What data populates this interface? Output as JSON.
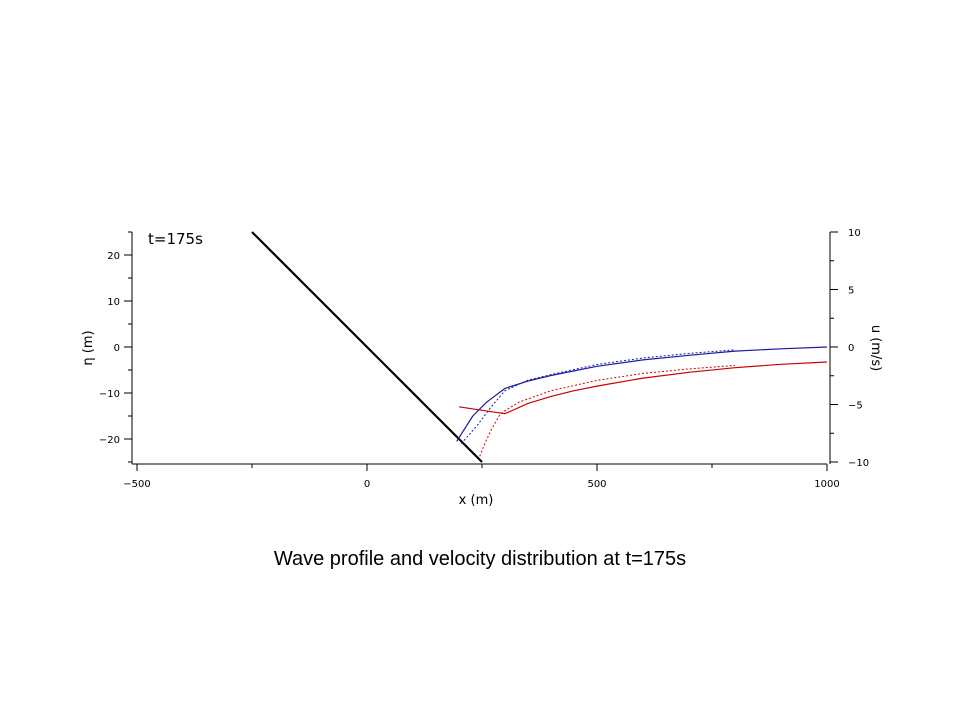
{
  "caption": "Wave profile and velocity distribution at t=175s",
  "chart_data": {
    "type": "line",
    "annotation": "t=175s",
    "xlabel": "x (m)",
    "ylabel_left": "η (m)",
    "ylabel_right": "u (m/s)",
    "xlim": [
      -500,
      1000
    ],
    "ylim_left": [
      -25,
      25
    ],
    "ylim_right": [
      -10,
      10
    ],
    "x_ticks": [
      -500,
      0,
      500,
      1000
    ],
    "y_left_ticks": [
      20,
      10,
      0,
      -10,
      -20
    ],
    "y_right_ticks": [
      10,
      5,
      0,
      -5,
      -10
    ],
    "grid": false,
    "legend": "none",
    "series": [
      {
        "axis": "left",
        "color": "#000000",
        "dash": "solid",
        "width": 2.2,
        "x": [
          -250,
          0,
          250
        ],
        "y": [
          25,
          0,
          -25
        ]
      },
      {
        "axis": "left",
        "color": "#1a1aa6",
        "dash": "solid",
        "width": 1.2,
        "x": [
          195,
          230,
          260,
          300,
          350,
          400,
          450,
          500,
          600,
          700,
          800,
          900,
          1000
        ],
        "y": [
          -20.5,
          -15,
          -12,
          -9,
          -7.4,
          -6.2,
          -5.2,
          -4.2,
          -2.8,
          -1.8,
          -0.9,
          -0.4,
          0
        ]
      },
      {
        "axis": "left",
        "color": "#1a1aa6",
        "dash": "dotted",
        "width": 1.0,
        "x": [
          205,
          240,
          270,
          300,
          350,
          400,
          450,
          500,
          600,
          700,
          800
        ],
        "y": [
          -21,
          -17,
          -13,
          -9.5,
          -7.2,
          -6,
          -4.9,
          -3.8,
          -2.4,
          -1.4,
          -0.6
        ]
      },
      {
        "axis": "right",
        "color": "#cc0000",
        "dash": "solid",
        "width": 1.2,
        "x": [
          200,
          250,
          300,
          350,
          400,
          450,
          500,
          600,
          700,
          800,
          900,
          1000
        ],
        "y": [
          -5.2,
          -5.5,
          -5.8,
          -4.9,
          -4.3,
          -3.8,
          -3.4,
          -2.7,
          -2.2,
          -1.8,
          -1.5,
          -1.3
        ]
      },
      {
        "axis": "right",
        "color": "#cc0000",
        "dash": "dotted",
        "width": 1.0,
        "x": [
          245,
          255,
          270,
          290,
          330,
          400,
          500,
          600,
          700,
          800
        ],
        "y": [
          -9.5,
          -8.5,
          -7.2,
          -5.8,
          -4.8,
          -3.8,
          -2.9,
          -2.3,
          -1.9,
          -1.6
        ]
      }
    ]
  }
}
